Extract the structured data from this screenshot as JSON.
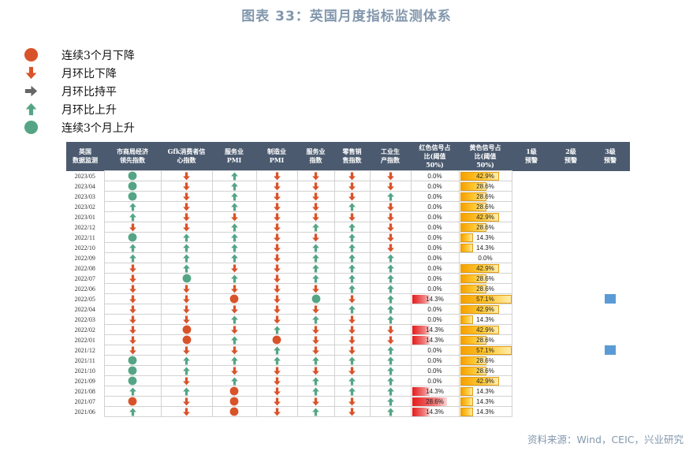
{
  "title": "图表 33：英国月度指标监测体系",
  "legend": [
    {
      "symbol": "circle-red",
      "label": "连续3个月下降"
    },
    {
      "symbol": "down",
      "label": "月环比下降"
    },
    {
      "symbol": "flat",
      "label": "月环比持平"
    },
    {
      "symbol": "up",
      "label": "月环比上升"
    },
    {
      "symbol": "circle-green",
      "label": "连续3个月上升"
    }
  ],
  "colors": {
    "red": "#d9532a",
    "green": "#54a585",
    "flat": "#666666",
    "header": "#4b5a6f",
    "marker": "#5b9bd5"
  },
  "source": "资料来源：Wind，CEIC，兴业研究",
  "chart_data": {
    "type": "table",
    "headers": [
      "英国\n数据监测",
      "市商局经济\n领先指数",
      "Gfk消费者信\n心指数",
      "服务业\nPMI",
      "制造业\nPMI",
      "服务业\n指数",
      "零售销\n售指数",
      "工业生\n产指数",
      "红色信号占\n比(阈值\n50%)",
      "黄色信号占\n比(阈值\n50%)",
      "1级\n预警",
      "2级\n预警",
      "3级\n预警"
    ],
    "rows": [
      {
        "date": "2023/05",
        "signals": [
          "cg",
          "d",
          "u",
          "d",
          "d",
          "d",
          "d"
        ],
        "red": "0.0%",
        "red_v": 0,
        "yellow": "42.9%",
        "yellow_v": 42.9,
        "warn3": false
      },
      {
        "date": "2023/04",
        "signals": [
          "cg",
          "d",
          "u",
          "d",
          "d",
          "d",
          "d"
        ],
        "red": "0.0%",
        "red_v": 0,
        "yellow": "28.6%",
        "yellow_v": 28.6,
        "warn3": false
      },
      {
        "date": "2023/03",
        "signals": [
          "cg",
          "d",
          "u",
          "d",
          "d",
          "d",
          "u"
        ],
        "red": "0.0%",
        "red_v": 0,
        "yellow": "28.6%",
        "yellow_v": 28.6,
        "warn3": false
      },
      {
        "date": "2023/02",
        "signals": [
          "u",
          "d",
          "u",
          "d",
          "d",
          "u",
          "d"
        ],
        "red": "0.0%",
        "red_v": 0,
        "yellow": "28.6%",
        "yellow_v": 28.6,
        "warn3": false
      },
      {
        "date": "2023/01",
        "signals": [
          "u",
          "d",
          "d",
          "d",
          "d",
          "d",
          "d"
        ],
        "red": "0.0%",
        "red_v": 0,
        "yellow": "42.9%",
        "yellow_v": 42.9,
        "warn3": false
      },
      {
        "date": "2022/12",
        "signals": [
          "d",
          "d",
          "u",
          "d",
          "u",
          "u",
          "d"
        ],
        "red": "0.0%",
        "red_v": 0,
        "yellow": "28.6%",
        "yellow_v": 28.6,
        "warn3": false
      },
      {
        "date": "2022/11",
        "signals": [
          "cg",
          "u",
          "u",
          "d",
          "d",
          "u",
          "d"
        ],
        "red": "0.0%",
        "red_v": 0,
        "yellow": "14.3%",
        "yellow_v": 14.3,
        "warn3": false
      },
      {
        "date": "2022/10",
        "signals": [
          "u",
          "u",
          "u",
          "d",
          "u",
          "u",
          "d"
        ],
        "red": "0.0%",
        "red_v": 0,
        "yellow": "14.3%",
        "yellow_v": 14.3,
        "warn3": false
      },
      {
        "date": "2022/09",
        "signals": [
          "u",
          "u",
          "u",
          "d",
          "u",
          "u",
          "u"
        ],
        "red": "0.0%",
        "red_v": 0,
        "yellow": "0.0%",
        "yellow_v": 0,
        "warn3": false
      },
      {
        "date": "2022/08",
        "signals": [
          "d",
          "u",
          "d",
          "d",
          "u",
          "u",
          "u"
        ],
        "red": "0.0%",
        "red_v": 0,
        "yellow": "42.9%",
        "yellow_v": 42.9,
        "warn3": false
      },
      {
        "date": "2022/07",
        "signals": [
          "d",
          "cg",
          "u",
          "d",
          "u",
          "u",
          "u"
        ],
        "red": "0.0%",
        "red_v": 0,
        "yellow": "28.6%",
        "yellow_v": 28.6,
        "warn3": false
      },
      {
        "date": "2022/06",
        "signals": [
          "d",
          "d",
          "d",
          "d",
          "d",
          "u",
          "u"
        ],
        "red": "0.0%",
        "red_v": 0,
        "yellow": "28.6%",
        "yellow_v": 28.6,
        "warn3": false
      },
      {
        "date": "2022/05",
        "signals": [
          "d",
          "d",
          "cr",
          "d",
          "cg",
          "d",
          "u"
        ],
        "red": "14.3%",
        "red_v": 14.3,
        "yellow": "57.1%",
        "yellow_v": 57.1,
        "warn3": true
      },
      {
        "date": "2022/04",
        "signals": [
          "d",
          "d",
          "d",
          "d",
          "d",
          "u",
          "u"
        ],
        "red": "0.0%",
        "red_v": 0,
        "yellow": "42.9%",
        "yellow_v": 42.9,
        "warn3": false
      },
      {
        "date": "2022/03",
        "signals": [
          "d",
          "d",
          "u",
          "d",
          "u",
          "d",
          "u"
        ],
        "red": "0.0%",
        "red_v": 0,
        "yellow": "14.3%",
        "yellow_v": 14.3,
        "warn3": false
      },
      {
        "date": "2022/02",
        "signals": [
          "d",
          "cr",
          "d",
          "u",
          "d",
          "d",
          "d"
        ],
        "red": "14.3%",
        "red_v": 14.3,
        "yellow": "42.9%",
        "yellow_v": 42.9,
        "warn3": false
      },
      {
        "date": "2022/01",
        "signals": [
          "d",
          "cr",
          "u",
          "cr",
          "d",
          "d",
          "d"
        ],
        "red": "14.3%",
        "red_v": 14.3,
        "yellow": "28.6%",
        "yellow_v": 28.6,
        "warn3": false
      },
      {
        "date": "2021/12",
        "signals": [
          "d",
          "d",
          "d",
          "u",
          "d",
          "d",
          "u"
        ],
        "red": "0.0%",
        "red_v": 0,
        "yellow": "57.1%",
        "yellow_v": 57.1,
        "warn3": true
      },
      {
        "date": "2021/11",
        "signals": [
          "cg",
          "u",
          "u",
          "u",
          "u",
          "u",
          "u"
        ],
        "red": "0.0%",
        "red_v": 0,
        "yellow": "28.6%",
        "yellow_v": 28.6,
        "warn3": false
      },
      {
        "date": "2021/10",
        "signals": [
          "cg",
          "u",
          "d",
          "d",
          "d",
          "d",
          "u"
        ],
        "red": "0.0%",
        "red_v": 0,
        "yellow": "28.6%",
        "yellow_v": 28.6,
        "warn3": false
      },
      {
        "date": "2021/09",
        "signals": [
          "cg",
          "d",
          "u",
          "d",
          "u",
          "u",
          "u"
        ],
        "red": "0.0%",
        "red_v": 0,
        "yellow": "42.9%",
        "yellow_v": 42.9,
        "warn3": false
      },
      {
        "date": "2021/08",
        "signals": [
          "u",
          "u",
          "cr",
          "d",
          "u",
          "u",
          "u"
        ],
        "red": "14.3%",
        "red_v": 14.3,
        "yellow": "14.3%",
        "yellow_v": 14.3,
        "warn3": false
      },
      {
        "date": "2021/07",
        "signals": [
          "cr",
          "d",
          "cr",
          "d",
          "d",
          "d",
          "u"
        ],
        "red": "28.6%",
        "red_v": 28.6,
        "yellow": "14.3%",
        "yellow_v": 14.3,
        "warn3": false
      },
      {
        "date": "2021/06",
        "signals": [
          "u",
          "d",
          "cr",
          "d",
          "u",
          "d",
          "u"
        ],
        "red": "14.3%",
        "red_v": 14.3,
        "yellow": "14.3%",
        "yellow_v": 14.3,
        "warn3": false
      }
    ]
  }
}
